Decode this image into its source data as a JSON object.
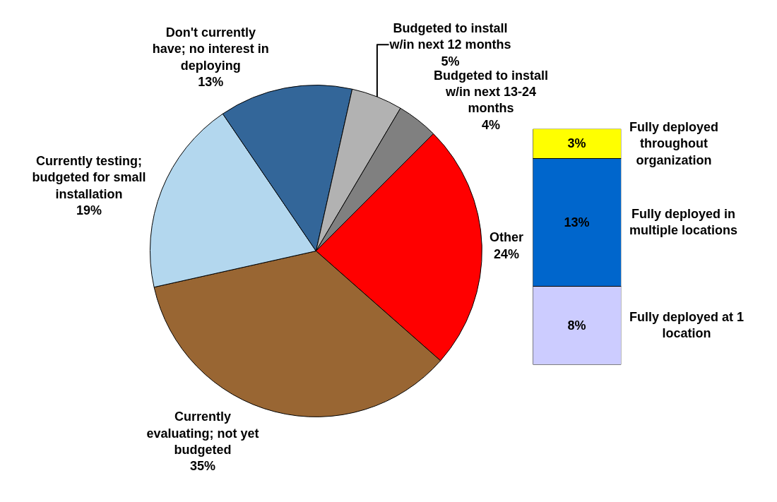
{
  "chart_data": [
    {
      "type": "pie",
      "categories": [
        "Other",
        "Currently evaluating; not yet budgeted",
        "Currently testing; budgeted for small installation",
        "Don't currently have; no interest in deploying",
        "Budgeted to install w/in next 12 months",
        "Budgeted to install w/in next 13-24 months"
      ],
      "values": [
        24,
        35,
        19,
        13,
        5,
        4
      ],
      "value_labels": [
        "24%",
        "35%",
        "19%",
        "13%",
        "5%",
        "4%"
      ],
      "colors": [
        "#ff0000",
        "#996633",
        "#b3d7ee",
        "#336699",
        "#b2b2b2",
        "#808080"
      ]
    },
    {
      "type": "bar",
      "stacked": true,
      "categories": [
        null
      ],
      "tick_labels": false,
      "series": [
        {
          "name": "Fully deployed at 1 location",
          "color": "#ccccff",
          "values": [
            8
          ],
          "value_labels": [
            "8%"
          ]
        },
        {
          "name": "Fully deployed in multiple locations",
          "color": "#0066cc",
          "values": [
            13
          ],
          "value_labels": [
            "13%"
          ]
        },
        {
          "name": "Fully deployed throughout organization",
          "color": "#ffff00",
          "values": [
            3
          ],
          "value_labels": [
            "3%"
          ]
        }
      ]
    }
  ]
}
